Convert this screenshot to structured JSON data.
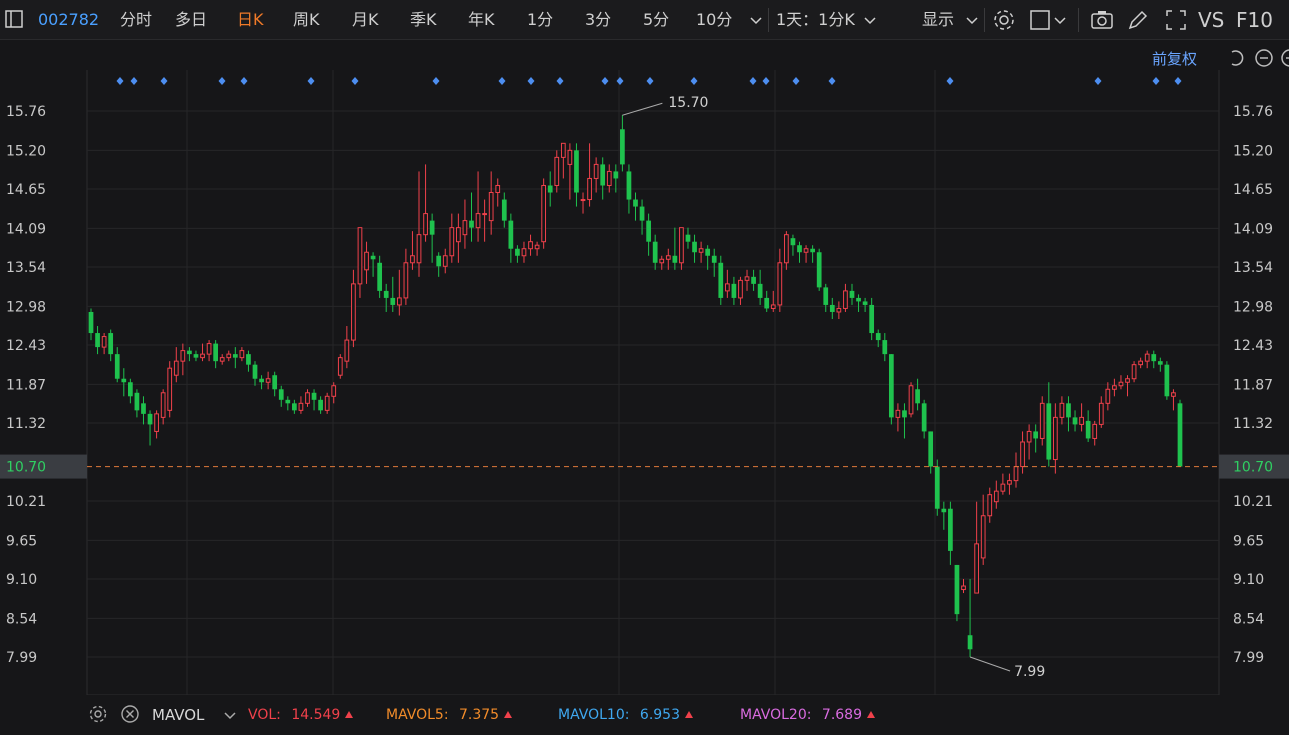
{
  "toolbar": {
    "code": "002782",
    "tabs": [
      {
        "label": "分时",
        "active": false
      },
      {
        "label": "多日",
        "active": false
      },
      {
        "label": "日K",
        "active": true
      },
      {
        "label": "周K",
        "active": false
      },
      {
        "label": "月K",
        "active": false
      },
      {
        "label": "季K",
        "active": false
      },
      {
        "label": "年K",
        "active": false
      },
      {
        "label": "1分",
        "active": false
      },
      {
        "label": "3分",
        "active": false
      },
      {
        "label": "5分",
        "active": false
      },
      {
        "label": "10分",
        "active": false
      }
    ],
    "period_select": "1天：1分K",
    "display_label": "显示",
    "vs_label": "VS",
    "f10_label": "F10",
    "icons": [
      "sidebar-toggle-icon",
      "chevron-down-icon",
      "gear-icon",
      "square-icon",
      "camera-icon",
      "pencil-icon",
      "fullscreen-icon"
    ]
  },
  "chart_header": {
    "adjust_label": "前复权",
    "icons": [
      "undo-icon",
      "minus-circle-icon",
      "plus-circle-icon"
    ]
  },
  "chart_data": {
    "type": "candlestick",
    "y_ticks": [
      "15.76",
      "15.20",
      "14.65",
      "14.09",
      "13.54",
      "12.98",
      "12.43",
      "11.87",
      "11.32",
      "10.70",
      "10.21",
      "9.65",
      "9.10",
      "8.54",
      "7.99"
    ],
    "ylim": [
      7.5,
      16.2
    ],
    "current_price": "10.70",
    "high_annotation": "15.70",
    "low_annotation": "7.99",
    "up_color": "#f0414b",
    "down_color": "#1fc24e",
    "dashed_line_color": "#e07a3a",
    "candles": [
      [
        12.9,
        12.6,
        12.95,
        12.5
      ],
      [
        12.6,
        12.4,
        12.7,
        12.3
      ],
      [
        12.4,
        12.55,
        12.6,
        12.3
      ],
      [
        12.6,
        12.3,
        12.65,
        12.2
      ],
      [
        12.3,
        11.95,
        12.4,
        11.9
      ],
      [
        11.95,
        11.9,
        12.1,
        11.7
      ],
      [
        11.9,
        11.7,
        11.95,
        11.6
      ],
      [
        11.75,
        11.5,
        11.8,
        11.4
      ],
      [
        11.6,
        11.45,
        11.7,
        11.3
      ],
      [
        11.45,
        11.3,
        11.5,
        11.0
      ],
      [
        11.2,
        11.45,
        11.5,
        11.1
      ],
      [
        11.4,
        11.75,
        11.8,
        11.3
      ],
      [
        11.5,
        12.1,
        12.2,
        11.4
      ],
      [
        12.0,
        12.2,
        12.4,
        11.9
      ],
      [
        12.2,
        12.35,
        12.45,
        12.0
      ],
      [
        12.35,
        12.3,
        12.4,
        12.2
      ],
      [
        12.3,
        12.25,
        12.35,
        12.2
      ],
      [
        12.25,
        12.3,
        12.45,
        12.2
      ],
      [
        12.3,
        12.45,
        12.5,
        12.2
      ],
      [
        12.45,
        12.2,
        12.5,
        12.1
      ],
      [
        12.2,
        12.25,
        12.3,
        12.15
      ],
      [
        12.25,
        12.3,
        12.35,
        12.2
      ],
      [
        12.3,
        12.25,
        12.4,
        12.1
      ],
      [
        12.25,
        12.35,
        12.4,
        12.2
      ],
      [
        12.3,
        12.15,
        12.35,
        12.05
      ],
      [
        12.15,
        11.95,
        12.2,
        11.85
      ],
      [
        11.95,
        11.9,
        12.0,
        11.8
      ],
      [
        11.9,
        11.95,
        12.05,
        11.8
      ],
      [
        12.0,
        11.8,
        12.05,
        11.7
      ],
      [
        11.8,
        11.65,
        11.85,
        11.55
      ],
      [
        11.65,
        11.6,
        11.7,
        11.5
      ],
      [
        11.6,
        11.5,
        11.65,
        11.45
      ],
      [
        11.5,
        11.6,
        11.7,
        11.45
      ],
      [
        11.6,
        11.75,
        11.8,
        11.55
      ],
      [
        11.75,
        11.65,
        11.8,
        11.5
      ],
      [
        11.65,
        11.5,
        11.7,
        11.45
      ],
      [
        11.5,
        11.7,
        11.75,
        11.45
      ],
      [
        11.7,
        11.85,
        11.9,
        11.6
      ],
      [
        12.0,
        12.25,
        12.3,
        11.95
      ],
      [
        12.2,
        12.5,
        12.7,
        12.1
      ],
      [
        12.5,
        13.3,
        13.5,
        12.4
      ],
      [
        13.3,
        14.1,
        14.1,
        13.1
      ],
      [
        13.5,
        13.75,
        13.9,
        13.3
      ],
      [
        13.7,
        13.65,
        13.75,
        13.4
      ],
      [
        13.6,
        13.2,
        13.7,
        13.1
      ],
      [
        13.2,
        13.1,
        13.3,
        12.9
      ],
      [
        13.1,
        13.0,
        13.4,
        12.9
      ],
      [
        13.0,
        13.1,
        13.5,
        12.85
      ],
      [
        13.1,
        13.6,
        13.8,
        13.0
      ],
      [
        13.6,
        13.7,
        14.05,
        13.5
      ],
      [
        13.6,
        14.0,
        14.9,
        13.4
      ],
      [
        14.0,
        14.3,
        15.0,
        13.9
      ],
      [
        14.2,
        14.0,
        14.3,
        13.6
      ],
      [
        13.7,
        13.55,
        13.75,
        13.4
      ],
      [
        13.55,
        13.7,
        13.8,
        13.45
      ],
      [
        13.7,
        14.1,
        14.3,
        13.6
      ],
      [
        13.9,
        14.1,
        14.3,
        13.6
      ],
      [
        14.0,
        14.2,
        14.5,
        13.8
      ],
      [
        14.2,
        14.1,
        14.6,
        13.9
      ],
      [
        14.1,
        14.3,
        14.9,
        13.9
      ],
      [
        14.3,
        14.3,
        14.5,
        13.9
      ],
      [
        14.2,
        14.6,
        14.9,
        14.0
      ],
      [
        14.6,
        14.7,
        14.8,
        14.4
      ],
      [
        14.5,
        14.2,
        14.6,
        14.1
      ],
      [
        14.2,
        13.8,
        14.3,
        13.6
      ],
      [
        13.8,
        13.7,
        13.85,
        13.6
      ],
      [
        13.7,
        13.8,
        13.9,
        13.6
      ],
      [
        13.8,
        13.9,
        14.0,
        13.7
      ],
      [
        13.8,
        13.85,
        13.9,
        13.7
      ],
      [
        13.9,
        14.7,
        14.8,
        13.8
      ],
      [
        14.7,
        14.6,
        14.9,
        14.4
      ],
      [
        14.7,
        15.1,
        15.2,
        14.6
      ],
      [
        15.1,
        15.3,
        15.3,
        14.8
      ],
      [
        15.0,
        15.2,
        15.3,
        14.5
      ],
      [
        15.2,
        14.6,
        15.3,
        14.4
      ],
      [
        14.5,
        14.5,
        14.6,
        14.3
      ],
      [
        14.5,
        14.8,
        15.3,
        14.4
      ],
      [
        14.8,
        15.0,
        15.1,
        14.6
      ],
      [
        15.0,
        14.7,
        15.1,
        14.5
      ],
      [
        14.7,
        14.9,
        15.0,
        14.6
      ],
      [
        14.9,
        14.8,
        15.0,
        14.6
      ],
      [
        15.5,
        15.0,
        15.7,
        14.9
      ],
      [
        14.9,
        14.5,
        15.0,
        14.3
      ],
      [
        14.5,
        14.4,
        14.6,
        14.2
      ],
      [
        14.4,
        14.2,
        14.5,
        14.0
      ],
      [
        14.2,
        13.9,
        14.3,
        13.7
      ],
      [
        13.9,
        13.6,
        14.0,
        13.5
      ],
      [
        13.6,
        13.65,
        13.7,
        13.5
      ],
      [
        13.65,
        13.7,
        13.8,
        13.5
      ],
      [
        13.7,
        13.6,
        14.1,
        13.5
      ],
      [
        13.6,
        14.1,
        14.1,
        13.5
      ],
      [
        14.0,
        13.9,
        14.1,
        13.8
      ],
      [
        13.9,
        13.75,
        14.0,
        13.6
      ],
      [
        13.75,
        13.8,
        13.9,
        13.6
      ],
      [
        13.8,
        13.7,
        13.85,
        13.5
      ],
      [
        13.7,
        13.6,
        13.8,
        13.4
      ],
      [
        13.6,
        13.1,
        13.7,
        13.0
      ],
      [
        13.2,
        13.3,
        13.5,
        13.1
      ],
      [
        13.3,
        13.1,
        13.4,
        13.0
      ],
      [
        13.1,
        13.35,
        13.4,
        13.0
      ],
      [
        13.35,
        13.4,
        13.5,
        13.2
      ],
      [
        13.4,
        13.3,
        13.5,
        13.2
      ],
      [
        13.3,
        13.1,
        13.5,
        13.0
      ],
      [
        13.1,
        12.95,
        13.2,
        12.9
      ],
      [
        12.95,
        13.0,
        13.2,
        12.9
      ],
      [
        13.0,
        13.6,
        13.8,
        12.9
      ],
      [
        13.6,
        14.0,
        14.05,
        13.5
      ],
      [
        13.95,
        13.85,
        14.0,
        13.7
      ],
      [
        13.85,
        13.75,
        13.9,
        13.6
      ],
      [
        13.75,
        13.8,
        13.85,
        13.6
      ],
      [
        13.8,
        13.75,
        13.85,
        13.6
      ],
      [
        13.75,
        13.25,
        13.8,
        13.2
      ],
      [
        13.25,
        13.0,
        13.3,
        12.9
      ],
      [
        13.0,
        12.9,
        13.1,
        12.8
      ],
      [
        12.9,
        12.95,
        13.05,
        12.8
      ],
      [
        12.95,
        13.2,
        13.3,
        12.9
      ],
      [
        13.2,
        13.1,
        13.3,
        13.0
      ],
      [
        13.1,
        13.05,
        13.15,
        12.9
      ],
      [
        13.05,
        13.0,
        13.1,
        12.9
      ],
      [
        13.0,
        12.6,
        13.1,
        12.5
      ],
      [
        12.6,
        12.5,
        12.65,
        12.4
      ],
      [
        12.5,
        12.3,
        12.6,
        12.2
      ],
      [
        12.3,
        11.4,
        12.3,
        11.3
      ],
      [
        11.4,
        11.5,
        11.6,
        11.2
      ],
      [
        11.5,
        11.4,
        11.6,
        11.1
      ],
      [
        11.45,
        11.85,
        11.9,
        11.4
      ],
      [
        11.8,
        11.6,
        11.95,
        11.5
      ],
      [
        11.6,
        11.2,
        11.65,
        11.1
      ],
      [
        11.2,
        10.7,
        11.2,
        10.6
      ],
      [
        10.7,
        10.1,
        10.8,
        10.0
      ],
      [
        10.1,
        10.05,
        10.2,
        9.8
      ],
      [
        10.1,
        9.5,
        10.2,
        9.3
      ],
      [
        9.3,
        8.6,
        9.3,
        8.5
      ],
      [
        8.95,
        9.0,
        9.1,
        8.9
      ],
      [
        8.3,
        8.1,
        9.1,
        7.99
      ],
      [
        8.9,
        9.6,
        10.2,
        8.9
      ],
      [
        9.4,
        10.0,
        10.3,
        9.3
      ],
      [
        10.0,
        10.3,
        10.4,
        9.9
      ],
      [
        10.2,
        10.35,
        10.5,
        10.1
      ],
      [
        10.35,
        10.45,
        10.6,
        10.3
      ],
      [
        10.45,
        10.5,
        10.6,
        10.3
      ],
      [
        10.5,
        10.7,
        10.9,
        10.4
      ],
      [
        10.7,
        11.05,
        11.2,
        10.6
      ],
      [
        11.05,
        11.2,
        11.3,
        10.8
      ],
      [
        11.2,
        11.1,
        11.3,
        10.9
      ],
      [
        11.1,
        11.6,
        11.7,
        11.0
      ],
      [
        11.6,
        10.8,
        11.9,
        10.7
      ],
      [
        10.8,
        11.4,
        11.6,
        10.6
      ],
      [
        11.4,
        11.6,
        11.7,
        11.3
      ],
      [
        11.6,
        11.4,
        11.7,
        11.2
      ],
      [
        11.4,
        11.3,
        11.5,
        11.2
      ],
      [
        11.3,
        11.4,
        11.6,
        11.2
      ],
      [
        11.35,
        11.1,
        11.5,
        11.05
      ],
      [
        11.1,
        11.3,
        11.35,
        11.0
      ],
      [
        11.3,
        11.6,
        11.7,
        11.25
      ],
      [
        11.6,
        11.8,
        11.9,
        11.5
      ],
      [
        11.8,
        11.85,
        11.95,
        11.7
      ],
      [
        11.85,
        11.9,
        12.0,
        11.8
      ],
      [
        11.9,
        11.95,
        12.0,
        11.7
      ],
      [
        11.95,
        12.15,
        12.2,
        11.9
      ],
      [
        12.15,
        12.2,
        12.25,
        12.1
      ],
      [
        12.2,
        12.3,
        12.35,
        12.1
      ],
      [
        12.3,
        12.2,
        12.35,
        12.1
      ],
      [
        12.2,
        12.15,
        12.25,
        12.05
      ],
      [
        12.15,
        11.7,
        12.2,
        11.65
      ],
      [
        11.7,
        11.75,
        11.8,
        11.5
      ],
      [
        11.6,
        10.7,
        11.65,
        10.7
      ]
    ]
  },
  "marker_color": "#4d8ef0",
  "volume_bar": {
    "indicator": "MAVOL",
    "vol_label": "VOL:",
    "vol_value": "14.549",
    "mavol5_label": "MAVOL5:",
    "mavol5_value": "7.375",
    "mavol10_label": "MAVOL10:",
    "mavol10_value": "6.953",
    "mavol20_label": "MAVOL20:",
    "mavol20_value": "7.689",
    "colors": {
      "vol": "#f0414b",
      "mavol5": "#f28c2a",
      "mavol10": "#3fa8f0",
      "mavol20": "#d96be0"
    }
  }
}
